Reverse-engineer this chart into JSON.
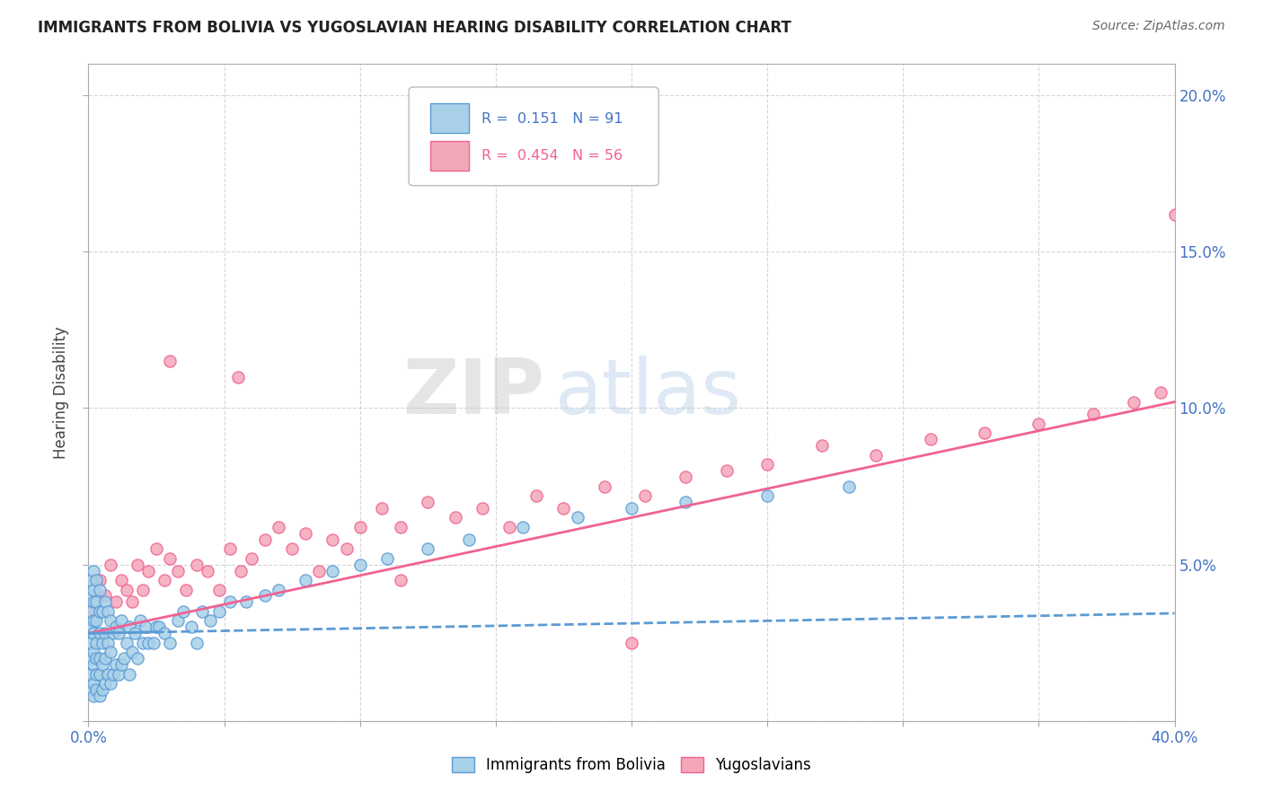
{
  "title": "IMMIGRANTS FROM BOLIVIA VS YUGOSLAVIAN HEARING DISABILITY CORRELATION CHART",
  "source": "Source: ZipAtlas.com",
  "ylabel": "Hearing Disability",
  "xlim": [
    0.0,
    0.4
  ],
  "ylim": [
    0.0,
    0.21
  ],
  "xticks": [
    0.0,
    0.05,
    0.1,
    0.15,
    0.2,
    0.25,
    0.3,
    0.35,
    0.4
  ],
  "yticks": [
    0.0,
    0.05,
    0.1,
    0.15,
    0.2
  ],
  "bolivia_color": "#a8d0e8",
  "yugoslavian_color": "#f4a7b9",
  "bolivia_edge_color": "#5b9bd5",
  "yugoslavian_edge_color": "#f06292",
  "bolivia_line_color": "#5b9bd5",
  "yugoslavian_line_color": "#f06292",
  "watermark_zip": "ZIP",
  "watermark_atlas": "atlas",
  "bolivia_R": 0.151,
  "yugoslavian_R": 0.454,
  "bolivia_N": 91,
  "yugoslavian_N": 56,
  "bolivia_intercept": 0.028,
  "bolivia_slope": 0.016,
  "yugoslavian_intercept": 0.028,
  "yugoslavian_slope": 0.185,
  "bolivia_x": [
    0.001,
    0.001,
    0.001,
    0.001,
    0.001,
    0.001,
    0.001,
    0.001,
    0.002,
    0.002,
    0.002,
    0.002,
    0.002,
    0.002,
    0.002,
    0.002,
    0.002,
    0.003,
    0.003,
    0.003,
    0.003,
    0.003,
    0.003,
    0.003,
    0.004,
    0.004,
    0.004,
    0.004,
    0.004,
    0.004,
    0.005,
    0.005,
    0.005,
    0.005,
    0.006,
    0.006,
    0.006,
    0.006,
    0.007,
    0.007,
    0.007,
    0.008,
    0.008,
    0.008,
    0.009,
    0.009,
    0.01,
    0.01,
    0.011,
    0.011,
    0.012,
    0.012,
    0.013,
    0.014,
    0.015,
    0.015,
    0.016,
    0.017,
    0.018,
    0.019,
    0.02,
    0.021,
    0.022,
    0.024,
    0.025,
    0.026,
    0.028,
    0.03,
    0.033,
    0.035,
    0.038,
    0.04,
    0.042,
    0.045,
    0.048,
    0.052,
    0.058,
    0.065,
    0.07,
    0.08,
    0.09,
    0.1,
    0.11,
    0.125,
    0.14,
    0.16,
    0.18,
    0.2,
    0.22,
    0.25,
    0.28
  ],
  "bolivia_y": [
    0.01,
    0.015,
    0.02,
    0.025,
    0.03,
    0.035,
    0.04,
    0.045,
    0.008,
    0.012,
    0.018,
    0.022,
    0.028,
    0.032,
    0.038,
    0.042,
    0.048,
    0.01,
    0.015,
    0.02,
    0.025,
    0.032,
    0.038,
    0.045,
    0.008,
    0.015,
    0.02,
    0.028,
    0.035,
    0.042,
    0.01,
    0.018,
    0.025,
    0.035,
    0.012,
    0.02,
    0.028,
    0.038,
    0.015,
    0.025,
    0.035,
    0.012,
    0.022,
    0.032,
    0.015,
    0.028,
    0.018,
    0.03,
    0.015,
    0.028,
    0.018,
    0.032,
    0.02,
    0.025,
    0.015,
    0.03,
    0.022,
    0.028,
    0.02,
    0.032,
    0.025,
    0.03,
    0.025,
    0.025,
    0.03,
    0.03,
    0.028,
    0.025,
    0.032,
    0.035,
    0.03,
    0.025,
    0.035,
    0.032,
    0.035,
    0.038,
    0.038,
    0.04,
    0.042,
    0.045,
    0.048,
    0.05,
    0.052,
    0.055,
    0.058,
    0.062,
    0.065,
    0.068,
    0.07,
    0.072,
    0.075
  ],
  "yugoslavian_x": [
    0.002,
    0.004,
    0.006,
    0.008,
    0.01,
    0.012,
    0.014,
    0.016,
    0.018,
    0.02,
    0.022,
    0.025,
    0.028,
    0.03,
    0.033,
    0.036,
    0.04,
    0.044,
    0.048,
    0.052,
    0.056,
    0.06,
    0.065,
    0.07,
    0.075,
    0.08,
    0.085,
    0.09,
    0.095,
    0.1,
    0.108,
    0.115,
    0.125,
    0.135,
    0.145,
    0.155,
    0.165,
    0.175,
    0.19,
    0.205,
    0.22,
    0.235,
    0.25,
    0.27,
    0.29,
    0.31,
    0.33,
    0.35,
    0.37,
    0.385,
    0.395,
    0.4,
    0.115,
    0.2,
    0.03,
    0.055
  ],
  "yugoslavian_y": [
    0.035,
    0.045,
    0.04,
    0.05,
    0.038,
    0.045,
    0.042,
    0.038,
    0.05,
    0.042,
    0.048,
    0.055,
    0.045,
    0.052,
    0.048,
    0.042,
    0.05,
    0.048,
    0.042,
    0.055,
    0.048,
    0.052,
    0.058,
    0.062,
    0.055,
    0.06,
    0.048,
    0.058,
    0.055,
    0.062,
    0.068,
    0.062,
    0.07,
    0.065,
    0.068,
    0.062,
    0.072,
    0.068,
    0.075,
    0.072,
    0.078,
    0.08,
    0.082,
    0.088,
    0.085,
    0.09,
    0.092,
    0.095,
    0.098,
    0.102,
    0.105,
    0.162,
    0.045,
    0.025,
    0.115,
    0.11
  ]
}
